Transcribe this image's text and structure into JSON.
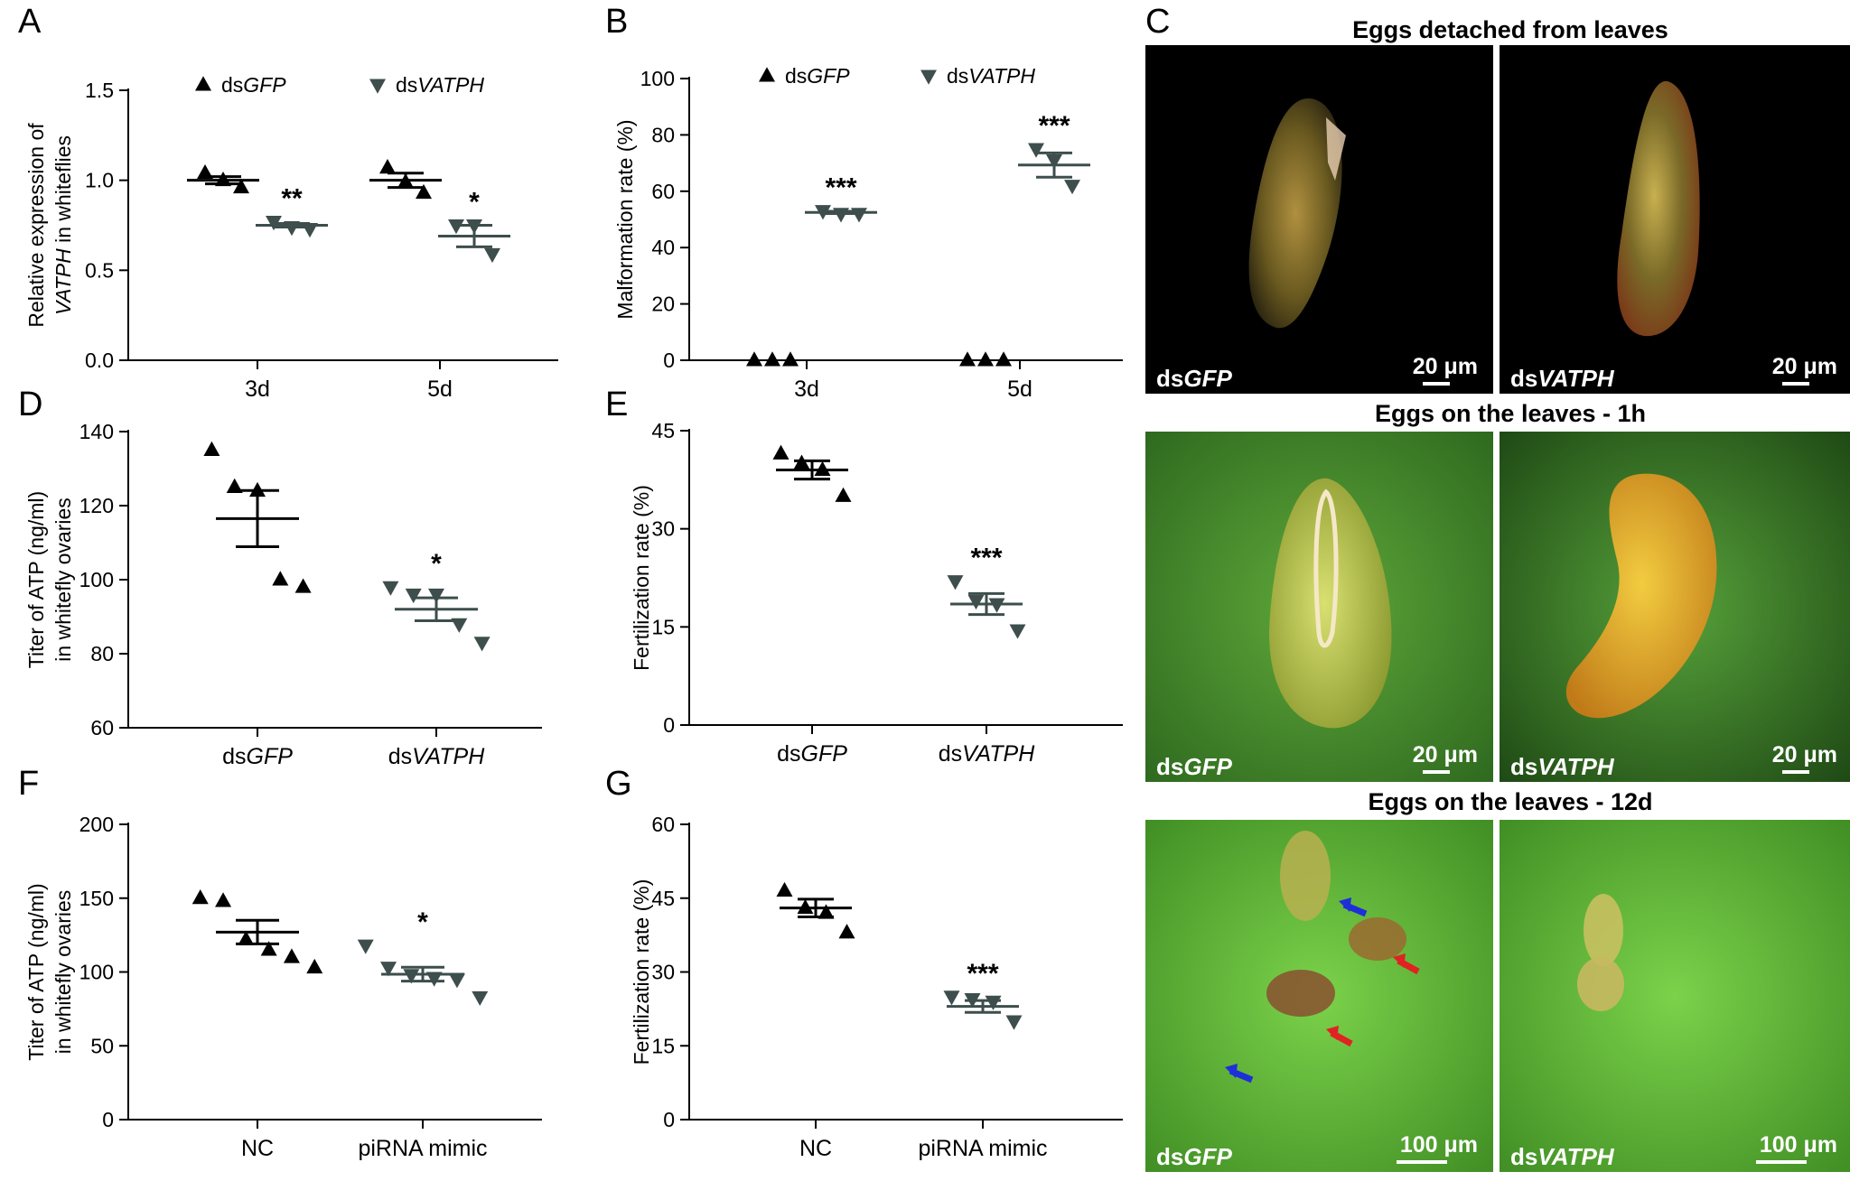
{
  "figure": {
    "colors": {
      "dsGFP": "#000000",
      "dsVATPH": "#3d4e4c"
    },
    "photos": {
      "letter": "C",
      "rows": [
        {
          "title": "Eggs detached from leaves",
          "labels": [
            "dsGFP",
            "dsVATPH"
          ],
          "scales": [
            "20 μm",
            "20 μm"
          ]
        },
        {
          "title": "Eggs on the leaves - 1h",
          "labels": [
            "dsGFP",
            "dsVATPH"
          ],
          "scales": [
            "20 μm",
            "20 μm"
          ]
        },
        {
          "title": "Eggs on the leaves - 12d",
          "labels": [
            "dsGFP",
            "dsVATPH"
          ],
          "scales": [
            "100 μm",
            "100 μm"
          ]
        }
      ],
      "arrows": {
        "blue": "#1e2fd8",
        "red": "#e02222"
      }
    }
  },
  "chart_data": [
    {
      "panel": "A",
      "type": "scatter",
      "ylabel": [
        "Relative expression of",
        "VATPH in whiteflies"
      ],
      "ylim": [
        0,
        1.5
      ],
      "yticks": [
        "0.0",
        "0.5",
        "1.0",
        "1.5"
      ],
      "categories": [
        "3d",
        "5d"
      ],
      "legend": [
        "dsGFP",
        "dsVATPH"
      ],
      "series": [
        {
          "name": "dsGFP",
          "groups": [
            {
              "category": "3d",
              "points": [
                1.04,
                1.0,
                0.96
              ],
              "mean": 1.0,
              "sem": 0.02
            },
            {
              "category": "5d",
              "points": [
                1.07,
                0.99,
                0.93
              ],
              "mean": 1.0,
              "sem": 0.04
            }
          ]
        },
        {
          "name": "dsVATPH",
          "groups": [
            {
              "category": "3d",
              "points": [
                0.77,
                0.74,
                0.73
              ],
              "mean": 0.75,
              "sem": 0.01,
              "sig": "**"
            },
            {
              "category": "5d",
              "points": [
                0.75,
                0.75,
                0.59
              ],
              "mean": 0.69,
              "sem": 0.06,
              "sig": "*"
            }
          ]
        }
      ]
    },
    {
      "panel": "B",
      "type": "scatter",
      "ylabel": [
        "Malformation rate  (%)"
      ],
      "ylim": [
        0,
        100
      ],
      "yticks": [
        "0",
        "20",
        "40",
        "60",
        "80",
        "100"
      ],
      "categories": [
        "3d",
        "5d"
      ],
      "legend": [
        "dsGFP",
        "dsVATPH"
      ],
      "series": [
        {
          "name": "dsGFP",
          "groups": [
            {
              "category": "3d",
              "points": [
                0,
                0,
                0
              ]
            },
            {
              "category": "5d",
              "points": [
                0,
                0,
                0
              ]
            }
          ]
        },
        {
          "name": "dsVATPH",
          "groups": [
            {
              "category": "3d",
              "points": [
                53,
                52,
                52
              ],
              "mean": 52.5,
              "sem": 0.4,
              "sig": "***"
            },
            {
              "category": "5d",
              "points": [
                75,
                71,
                62
              ],
              "mean": 69.3,
              "sem": 4.3,
              "sig": "***"
            }
          ]
        }
      ]
    },
    {
      "panel": "D",
      "type": "scatter",
      "ylabel": [
        "Titer of ATP (ng/ml)",
        "in whitefly ovaries"
      ],
      "ylim": [
        60,
        140
      ],
      "yticks": [
        "60",
        "80",
        "100",
        "120",
        "140"
      ],
      "categories": [
        "dsGFP",
        "dsVATPH"
      ],
      "series": [
        {
          "name": "dsGFP",
          "groups": [
            {
              "category": "dsGFP",
              "points": [
                135,
                125,
                124,
                100,
                98
              ],
              "mean": 116.5,
              "sem": 7.6
            }
          ]
        },
        {
          "name": "dsVATPH",
          "groups": [
            {
              "category": "dsVATPH",
              "points": [
                98,
                96,
                96,
                88,
                83
              ],
              "mean": 92,
              "sem": 3.1,
              "sig": "*"
            }
          ]
        }
      ]
    },
    {
      "panel": "E",
      "type": "scatter",
      "ylabel": [
        "Fertilization rate (%)"
      ],
      "ylim": [
        0,
        45
      ],
      "yticks": [
        "0",
        "15",
        "30",
        "45"
      ],
      "categories": [
        "dsGFP",
        "dsVATPH"
      ],
      "series": [
        {
          "name": "dsGFP",
          "groups": [
            {
              "category": "dsGFP",
              "points": [
                41.5,
                40,
                39,
                35
              ],
              "mean": 39,
              "sem": 1.4
            }
          ]
        },
        {
          "name": "dsVATPH",
          "groups": [
            {
              "category": "dsVATPH",
              "points": [
                22,
                19,
                18.5,
                14.5
              ],
              "mean": 18.5,
              "sem": 1.6,
              "sig": "***"
            }
          ]
        }
      ]
    },
    {
      "panel": "F",
      "type": "scatter",
      "ylabel": [
        "Titer of ATP (ng/ml)",
        "in whitefly ovaries"
      ],
      "ylim": [
        0,
        200
      ],
      "yticks": [
        "0",
        "50",
        "100",
        "150",
        "200"
      ],
      "categories": [
        "NC",
        "piRNA mimic"
      ],
      "series": [
        {
          "name": "NC",
          "groups": [
            {
              "category": "NC",
              "points": [
                150,
                148,
                122,
                115,
                110,
                103
              ],
              "mean": 127,
              "sem": 8
            }
          ]
        },
        {
          "name": "piRNA mimic",
          "groups": [
            {
              "category": "piRNA mimic",
              "points": [
                118,
                103,
                98,
                96,
                95,
                83
              ],
              "mean": 98.5,
              "sem": 4.7,
              "sig": "*"
            }
          ]
        }
      ]
    },
    {
      "panel": "G",
      "type": "scatter",
      "ylabel": [
        "Fertilization rate (%)"
      ],
      "ylim": [
        0,
        60
      ],
      "yticks": [
        "0",
        "15",
        "30",
        "45",
        "60"
      ],
      "categories": [
        "NC",
        "piRNA mimic"
      ],
      "series": [
        {
          "name": "NC",
          "groups": [
            {
              "category": "NC",
              "points": [
                46.5,
                43,
                42,
                38
              ],
              "mean": 43,
              "sem": 1.8
            }
          ]
        },
        {
          "name": "piRNA mimic",
          "groups": [
            {
              "category": "piRNA mimic",
              "points": [
                25,
                24.5,
                24,
                20
              ],
              "mean": 23,
              "sem": 1.2,
              "sig": "***"
            }
          ]
        }
      ]
    }
  ]
}
